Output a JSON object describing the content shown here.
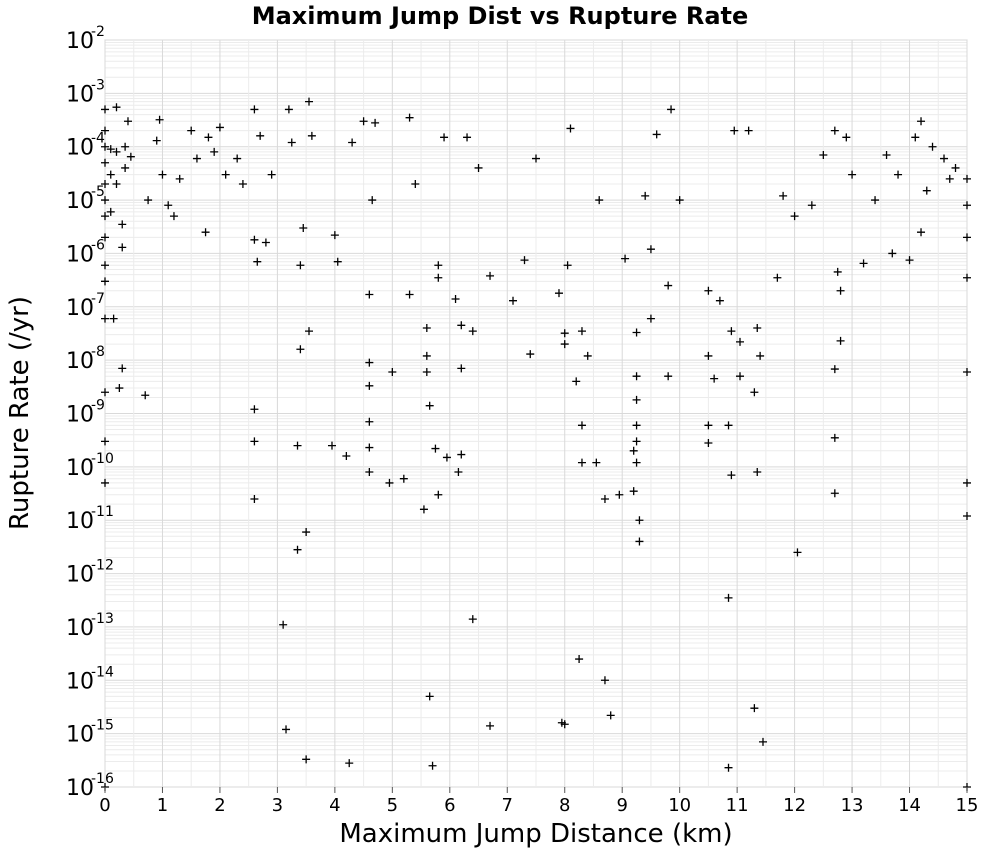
{
  "chart_data": {
    "type": "scatter",
    "title": "Maximum Jump Dist vs Rupture Rate",
    "xlabel": "Maximum Jump Distance (km)",
    "ylabel": "Rupture Rate (/yr)",
    "xlim": [
      0,
      15
    ],
    "ylim": [
      1e-16,
      0.01
    ],
    "yscale": "log",
    "grid": true,
    "marker": "plus",
    "color": "#000000",
    "x_ticks": [
      "0",
      "1",
      "2",
      "3",
      "4",
      "5",
      "6",
      "7",
      "8",
      "9",
      "10",
      "11",
      "12",
      "13",
      "14",
      "15"
    ],
    "y_ticks": [
      {
        "base": "10",
        "exp": "-2"
      },
      {
        "base": "10",
        "exp": "-3"
      },
      {
        "base": "10",
        "exp": "-4"
      },
      {
        "base": "10",
        "exp": "-5"
      },
      {
        "base": "10",
        "exp": "-6"
      },
      {
        "base": "10",
        "exp": "-7"
      },
      {
        "base": "10",
        "exp": "-8"
      },
      {
        "base": "10",
        "exp": "-9"
      },
      {
        "base": "10",
        "exp": "-10"
      },
      {
        "base": "10",
        "exp": "-11"
      },
      {
        "base": "10",
        "exp": "-12"
      },
      {
        "base": "10",
        "exp": "-13"
      },
      {
        "base": "10",
        "exp": "-14"
      },
      {
        "base": "10",
        "exp": "-15"
      },
      {
        "base": "10",
        "exp": "-16"
      }
    ],
    "points": [
      [
        0.0,
        0.0005
      ],
      [
        0.0,
        0.0002
      ],
      [
        0.0,
        0.0001
      ],
      [
        0.0,
        5e-05
      ],
      [
        0.0,
        2e-05
      ],
      [
        0.0,
        1e-05
      ],
      [
        0.0,
        5e-06
      ],
      [
        0.0,
        2e-06
      ],
      [
        0.0,
        6e-07
      ],
      [
        0.0,
        3e-07
      ],
      [
        0.0,
        6e-08
      ],
      [
        0.0,
        2.5e-09
      ],
      [
        0.0,
        3e-10
      ],
      [
        0.0,
        5e-11
      ],
      [
        0.0,
        1e-16
      ],
      [
        0.1,
        9e-05
      ],
      [
        0.1,
        3e-05
      ],
      [
        0.1,
        6e-06
      ],
      [
        0.15,
        6e-08
      ],
      [
        0.2,
        0.00055
      ],
      [
        0.2,
        8e-05
      ],
      [
        0.2,
        2e-05
      ],
      [
        0.25,
        3e-09
      ],
      [
        0.3,
        7e-09
      ],
      [
        0.3,
        1.3e-06
      ],
      [
        0.3,
        3.5e-06
      ],
      [
        0.35,
        0.0001
      ],
      [
        0.35,
        4e-05
      ],
      [
        0.4,
        0.0003
      ],
      [
        0.45,
        6.5e-05
      ],
      [
        0.7,
        2.2e-09
      ],
      [
        0.75,
        1e-05
      ],
      [
        0.9,
        0.00013
      ],
      [
        0.95,
        0.00032
      ],
      [
        1.0,
        3e-05
      ],
      [
        1.1,
        8e-06
      ],
      [
        1.2,
        5e-06
      ],
      [
        1.3,
        2.5e-05
      ],
      [
        1.5,
        0.0002
      ],
      [
        1.6,
        6e-05
      ],
      [
        1.75,
        2.5e-06
      ],
      [
        1.8,
        0.00015
      ],
      [
        1.9,
        8e-05
      ],
      [
        2.0,
        0.00023
      ],
      [
        2.1,
        3e-05
      ],
      [
        2.3,
        6e-05
      ],
      [
        2.4,
        2e-05
      ],
      [
        2.6,
        0.0005
      ],
      [
        2.6,
        1.2e-09
      ],
      [
        2.6,
        3e-10
      ],
      [
        2.6,
        2.5e-11
      ],
      [
        2.6,
        1.8e-06
      ],
      [
        2.65,
        7e-07
      ],
      [
        2.7,
        0.00016
      ],
      [
        2.8,
        1.6e-06
      ],
      [
        2.9,
        3e-05
      ],
      [
        3.1,
        1.1e-13
      ],
      [
        3.15,
        1.2e-15
      ],
      [
        3.2,
        0.0005
      ],
      [
        3.25,
        0.00012
      ],
      [
        3.35,
        2.5e-10
      ],
      [
        3.35,
        2.8e-12
      ],
      [
        3.4,
        1.6e-08
      ],
      [
        3.4,
        6e-07
      ],
      [
        3.45,
        3e-06
      ],
      [
        3.5,
        6e-12
      ],
      [
        3.5,
        3.3e-16
      ],
      [
        3.55,
        0.0007
      ],
      [
        3.55,
        3.5e-08
      ],
      [
        3.6,
        0.00016
      ],
      [
        3.95,
        2.5e-10
      ],
      [
        4.0,
        2.2e-06
      ],
      [
        4.05,
        7e-07
      ],
      [
        4.2,
        1.6e-10
      ],
      [
        4.25,
        2.8e-16
      ],
      [
        4.3,
        0.00012
      ],
      [
        4.5,
        0.0003
      ],
      [
        4.6,
        1.7e-07
      ],
      [
        4.6,
        9e-09
      ],
      [
        4.6,
        3.3e-09
      ],
      [
        4.6,
        7e-10
      ],
      [
        4.6,
        2.3e-10
      ],
      [
        4.6,
        8e-11
      ],
      [
        4.65,
        1e-05
      ],
      [
        4.7,
        0.00028
      ],
      [
        4.95,
        5e-11
      ],
      [
        5.0,
        6e-09
      ],
      [
        5.2,
        6e-11
      ],
      [
        5.3,
        1.7e-07
      ],
      [
        5.3,
        0.00035
      ],
      [
        5.4,
        2e-05
      ],
      [
        5.55,
        1.6e-11
      ],
      [
        5.6,
        4e-08
      ],
      [
        5.6,
        1.2e-08
      ],
      [
        5.6,
        6e-09
      ],
      [
        5.65,
        1.4e-09
      ],
      [
        5.65,
        5e-15
      ],
      [
        5.7,
        2.5e-16
      ],
      [
        5.75,
        2.2e-10
      ],
      [
        5.8,
        3e-11
      ],
      [
        5.8,
        6e-07
      ],
      [
        5.8,
        3.5e-07
      ],
      [
        5.9,
        0.00015
      ],
      [
        5.95,
        1.5e-10
      ],
      [
        6.1,
        1.4e-07
      ],
      [
        6.15,
        8e-11
      ],
      [
        6.2,
        4.5e-08
      ],
      [
        6.2,
        7e-09
      ],
      [
        6.2,
        1.7e-10
      ],
      [
        6.3,
        0.00015
      ],
      [
        6.4,
        3.5e-08
      ],
      [
        6.4,
        1.4e-13
      ],
      [
        6.5,
        4e-05
      ],
      [
        6.7,
        1.4e-15
      ],
      [
        6.7,
        3.8e-07
      ],
      [
        7.1,
        1.3e-07
      ],
      [
        7.3,
        7.5e-07
      ],
      [
        7.4,
        1.3e-08
      ],
      [
        7.5,
        6e-05
      ],
      [
        7.9,
        1.8e-07
      ],
      [
        7.95,
        1.6e-15
      ],
      [
        8.0,
        3.2e-08
      ],
      [
        8.0,
        2e-08
      ],
      [
        8.0,
        1.5e-15
      ],
      [
        8.05,
        6e-07
      ],
      [
        8.1,
        0.00022
      ],
      [
        8.2,
        4e-09
      ],
      [
        8.25,
        2.5e-14
      ],
      [
        8.3,
        6e-10
      ],
      [
        8.3,
        1.2e-10
      ],
      [
        8.3,
        3.5e-08
      ],
      [
        8.4,
        1.2e-08
      ],
      [
        8.55,
        1.2e-10
      ],
      [
        8.6,
        1e-05
      ],
      [
        8.7,
        2.5e-11
      ],
      [
        8.7,
        1e-14
      ],
      [
        8.8,
        2.2e-15
      ],
      [
        8.95,
        3e-11
      ],
      [
        9.05,
        8e-07
      ],
      [
        9.2,
        2e-10
      ],
      [
        9.2,
        3.5e-11
      ],
      [
        9.25,
        3.3e-08
      ],
      [
        9.25,
        5e-09
      ],
      [
        9.25,
        1.8e-09
      ],
      [
        9.25,
        6e-10
      ],
      [
        9.25,
        3e-10
      ],
      [
        9.25,
        1.2e-10
      ],
      [
        9.3,
        1e-11
      ],
      [
        9.3,
        4e-12
      ],
      [
        9.4,
        1.2e-05
      ],
      [
        9.5,
        6e-08
      ],
      [
        9.5,
        1.2e-06
      ],
      [
        9.6,
        0.00017
      ],
      [
        9.8,
        2.5e-07
      ],
      [
        9.8,
        5e-09
      ],
      [
        9.85,
        0.0005
      ],
      [
        10.0,
        1e-05
      ],
      [
        10.5,
        2e-07
      ],
      [
        10.5,
        1.2e-08
      ],
      [
        10.5,
        6e-10
      ],
      [
        10.5,
        2.8e-10
      ],
      [
        10.6,
        4.5e-09
      ],
      [
        10.7,
        1.3e-07
      ],
      [
        10.85,
        6e-10
      ],
      [
        10.85,
        3.5e-13
      ],
      [
        10.85,
        2.3e-16
      ],
      [
        10.9,
        3.5e-08
      ],
      [
        10.9,
        7e-11
      ],
      [
        10.95,
        0.0002
      ],
      [
        11.05,
        2.2e-08
      ],
      [
        11.05,
        5e-09
      ],
      [
        11.2,
        0.0002
      ],
      [
        11.3,
        2.5e-09
      ],
      [
        11.3,
        3e-15
      ],
      [
        11.35,
        8e-11
      ],
      [
        11.35,
        4e-08
      ],
      [
        11.4,
        1.2e-08
      ],
      [
        11.45,
        7e-16
      ],
      [
        11.7,
        3.5e-07
      ],
      [
        11.8,
        1.2e-05
      ],
      [
        12.0,
        5e-06
      ],
      [
        12.05,
        2.5e-12
      ],
      [
        12.3,
        8e-06
      ],
      [
        12.5,
        7e-05
      ],
      [
        12.7,
        0.0002
      ],
      [
        12.7,
        6.8e-09
      ],
      [
        12.7,
        3.5e-10
      ],
      [
        12.7,
        3.2e-11
      ],
      [
        12.75,
        4.5e-07
      ],
      [
        12.8,
        2.3e-08
      ],
      [
        12.8,
        2e-07
      ],
      [
        12.9,
        0.00015
      ],
      [
        13.0,
        3e-05
      ],
      [
        13.2,
        6.5e-07
      ],
      [
        13.4,
        1e-05
      ],
      [
        13.6,
        7e-05
      ],
      [
        13.7,
        1e-06
      ],
      [
        13.8,
        3e-05
      ],
      [
        14.0,
        7.5e-07
      ],
      [
        14.1,
        0.00015
      ],
      [
        14.2,
        0.0003
      ],
      [
        14.2,
        2.5e-06
      ],
      [
        14.3,
        1.5e-05
      ],
      [
        14.4,
        0.0001
      ],
      [
        14.6,
        6e-05
      ],
      [
        14.7,
        2.5e-05
      ],
      [
        14.8,
        4e-05
      ],
      [
        15.0,
        3.5e-07
      ],
      [
        15.0,
        6e-09
      ],
      [
        15.0,
        5e-11
      ],
      [
        15.0,
        1.2e-11
      ],
      [
        15.0,
        2e-06
      ],
      [
        15.0,
        2.5e-05
      ],
      [
        15.0,
        8e-06
      ],
      [
        15.0,
        1e-16
      ]
    ]
  }
}
